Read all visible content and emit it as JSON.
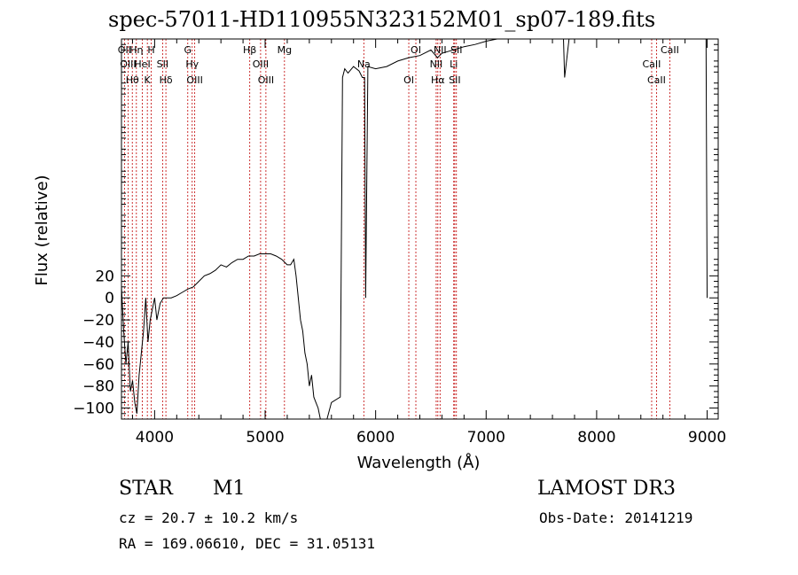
{
  "title": "spec-57011-HD110955N323152M01_sp07-189.fits",
  "footer": {
    "class_label": "STAR",
    "subclass": "M1",
    "survey": "LAMOST DR3",
    "cz": "cz = 20.7 ± 10.2 km/s",
    "obs_date": "Obs-Date: 20141219",
    "coords": "RA = 169.06610, DEC =  31.05131"
  },
  "chart_data": {
    "type": "line",
    "xlabel": "Wavelength (Å)",
    "ylabel": "Flux (relative)",
    "xlim": [
      3700,
      9100
    ],
    "ylim": [
      -110,
      235
    ],
    "x_ticks": [
      4000,
      5000,
      6000,
      7000,
      8000,
      9000
    ],
    "y_ticks": [
      -100,
      -80,
      -60,
      -40,
      -20,
      0,
      20
    ],
    "y_tick_labels": [
      "−100",
      "−80",
      "−60",
      "−40",
      "−20",
      "0",
      "20"
    ],
    "grid": false,
    "line_color": "#000000",
    "marker_color": "#c00000",
    "series": [
      {
        "x": [
          3700,
          3720,
          3740,
          3760,
          3780,
          3800,
          3820,
          3840,
          3860,
          3880,
          3900,
          3920,
          3940,
          3960,
          3980,
          4000,
          4020,
          4050,
          4080,
          4100,
          4150,
          4200,
          4250,
          4300,
          4350,
          4400,
          4450,
          4500,
          4550,
          4600,
          4650,
          4700,
          4750,
          4800,
          4850,
          4900,
          4950,
          5000,
          5050,
          5100,
          5150,
          5200,
          5230,
          5260,
          5280,
          5300,
          5320,
          5340,
          5360,
          5380,
          5400,
          5420,
          5440,
          5460,
          5480,
          5500,
          5520,
          5560,
          5600,
          5680,
          5700,
          5720,
          5750,
          5800,
          5850,
          5880,
          5900,
          5910,
          5930,
          6000,
          6100,
          6200,
          6300,
          6400,
          6500,
          6560,
          6600,
          6700,
          6800,
          6900,
          7000,
          7100,
          7200,
          7300,
          7400,
          7500,
          7600,
          7700,
          7710,
          7750,
          7800,
          7900,
          8000,
          8100,
          8200,
          8300,
          8400,
          8500,
          8600,
          8700,
          8800,
          8900,
          8950,
          8990,
          9000
        ],
        "y": [
          10,
          -30,
          -60,
          -40,
          -85,
          -75,
          -95,
          -105,
          -70,
          -50,
          -30,
          0,
          -40,
          -20,
          -10,
          0,
          -20,
          -5,
          0,
          0,
          0,
          2,
          5,
          8,
          10,
          15,
          20,
          22,
          25,
          30,
          28,
          32,
          35,
          35,
          38,
          38,
          40,
          40,
          40,
          38,
          35,
          30,
          30,
          35,
          20,
          0,
          -20,
          -30,
          -50,
          -60,
          -80,
          -70,
          -90,
          -95,
          -100,
          -110,
          -110,
          -110,
          -95,
          -90,
          200,
          208,
          204,
          210,
          206,
          200,
          200,
          0,
          210,
          208,
          210,
          215,
          218,
          220,
          225,
          218,
          222,
          225,
          228,
          230,
          233,
          236,
          238,
          240,
          238,
          240,
          242,
          240,
          200,
          238,
          240,
          242,
          243,
          244,
          245,
          246,
          246,
          244,
          245,
          240,
          245,
          240,
          246,
          240,
          0
        ]
      }
    ],
    "line_markers": [
      {
        "x": 3727,
        "label": "OII"
      },
      {
        "x": 3760,
        "label": "OIII"
      },
      {
        "x": 3798,
        "label": "Hθ"
      },
      {
        "x": 3835,
        "label": "Hη"
      },
      {
        "x": 3889,
        "label": "HeI"
      },
      {
        "x": 3934,
        "label": "K"
      },
      {
        "x": 3969,
        "label": "H"
      },
      {
        "x": 4072,
        "label": "SII"
      },
      {
        "x": 4102,
        "label": "Hδ"
      },
      {
        "x": 4300,
        "label": "G"
      },
      {
        "x": 4340,
        "label": "Hγ"
      },
      {
        "x": 4363,
        "label": "OIII"
      },
      {
        "x": 4861,
        "label": "Hβ"
      },
      {
        "x": 4959,
        "label": "OIII"
      },
      {
        "x": 5007,
        "label": "OIII"
      },
      {
        "x": 5175,
        "label": "Mg"
      },
      {
        "x": 5893,
        "label": "Na"
      },
      {
        "x": 6300,
        "label": "OI"
      },
      {
        "x": 6364,
        "label": "OI"
      },
      {
        "x": 6548,
        "label": "NII"
      },
      {
        "x": 6563,
        "label": "Hα"
      },
      {
        "x": 6583,
        "label": "NII"
      },
      {
        "x": 6707,
        "label": "Li"
      },
      {
        "x": 6716,
        "label": "SII"
      },
      {
        "x": 6731,
        "label": "SII"
      },
      {
        "x": 8498,
        "label": "CaII"
      },
      {
        "x": 8542,
        "label": "CaII"
      },
      {
        "x": 8662,
        "label": "CaII"
      }
    ]
  }
}
